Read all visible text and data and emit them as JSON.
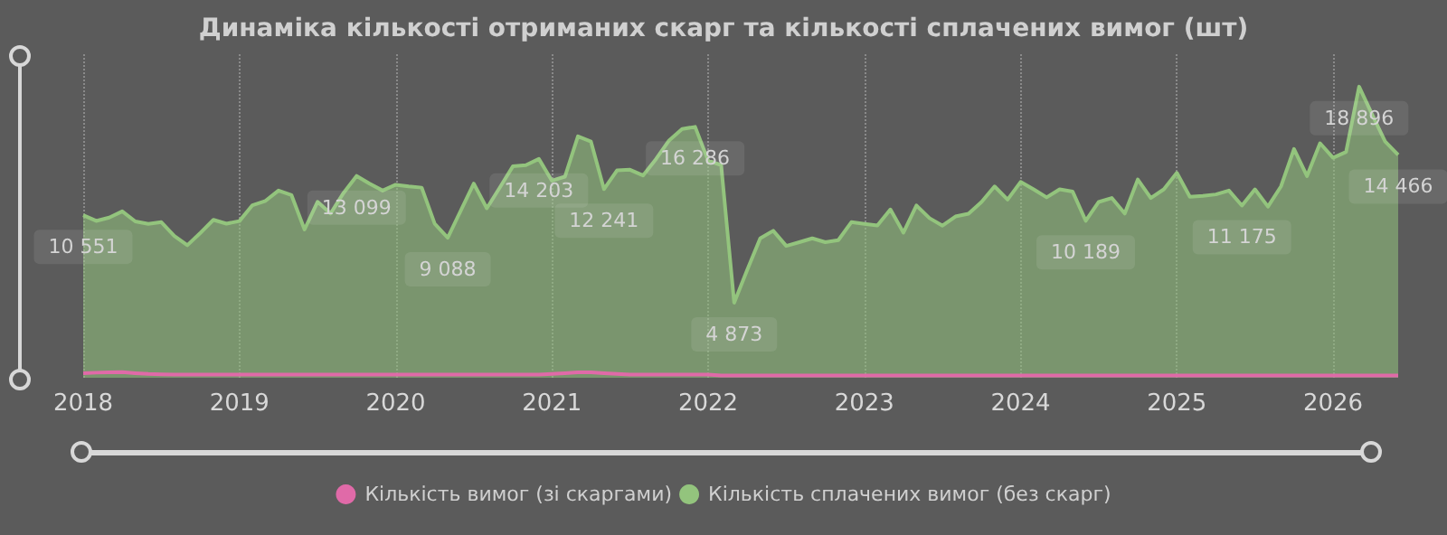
{
  "chart_data": {
    "type": "area",
    "title": "Динаміка кількості отриманих скарг та кількості сплачених вимог (шт)",
    "categories": [
      "2018",
      null,
      null,
      null,
      null,
      null,
      null,
      null,
      null,
      null,
      null,
      null,
      "2019",
      null,
      null,
      null,
      null,
      null,
      null,
      null,
      null,
      null,
      null,
      null,
      "2020",
      null,
      null,
      null,
      null,
      null,
      null,
      null,
      null,
      null,
      null,
      null,
      "2021",
      null,
      null,
      null,
      null,
      null,
      null,
      null,
      null,
      null,
      null,
      null,
      "2022",
      null,
      null,
      null,
      null,
      null,
      null,
      null,
      null,
      null,
      null,
      null,
      "2023",
      null,
      null,
      null,
      null,
      null,
      null,
      null,
      null,
      null,
      null,
      null,
      "2024",
      null,
      null,
      null,
      null,
      null,
      null,
      null,
      null,
      null,
      null,
      null,
      "2025",
      null,
      null,
      null,
      null,
      null,
      null,
      null,
      null,
      null,
      null,
      null,
      "2026",
      null,
      null,
      null,
      null,
      null
    ],
    "series": [
      {
        "name": "Кількість вимог (зі скаргами)",
        "type": "line",
        "color": "#e06aa8",
        "values": [
          300,
          330,
          350,
          360,
          300,
          250,
          220,
          200,
          200,
          200,
          200,
          200,
          200,
          200,
          200,
          200,
          200,
          200,
          200,
          200,
          200,
          200,
          200,
          200,
          200,
          200,
          200,
          200,
          200,
          200,
          200,
          200,
          200,
          200,
          200,
          200,
          250,
          300,
          350,
          350,
          300,
          250,
          200,
          200,
          200,
          200,
          200,
          200,
          200,
          150,
          150,
          150,
          150,
          150,
          150,
          150,
          150,
          150,
          150,
          150,
          150,
          150,
          150,
          150,
          150,
          150,
          150,
          150,
          150,
          150,
          150,
          150,
          150,
          150,
          150,
          150,
          150,
          150,
          150,
          150,
          150,
          150,
          150,
          150,
          150,
          150,
          150,
          150,
          150,
          150,
          150,
          150,
          150,
          150,
          150,
          150,
          150,
          150,
          150,
          150,
          150,
          150
        ]
      },
      {
        "name": "Кількість сплачених вимог (без скарг)",
        "color": "#93c47d",
        "values": [
          10551,
          10180,
          10400,
          10800,
          10150,
          9990,
          10100,
          9200,
          8600,
          9400,
          10250,
          10000,
          10170,
          11200,
          11480,
          12150,
          11850,
          9620,
          11420,
          10660,
          12000,
          13099,
          12600,
          12150,
          12530,
          12420,
          12340,
          9990,
          9088,
          10850,
          12600,
          11000,
          12350,
          13720,
          13800,
          14203,
          12790,
          13050,
          15670,
          15330,
          12241,
          13460,
          13500,
          13130,
          14200,
          15400,
          16150,
          16286,
          14100,
          13800,
          4873,
          7000,
          9050,
          9540,
          8560,
          8800,
          9050,
          8800,
          8930,
          10100,
          9990,
          9880,
          10920,
          9420,
          11180,
          10360,
          9870,
          10470,
          10650,
          11410,
          12420,
          11560,
          12710,
          12230,
          11710,
          12230,
          12080,
          10189,
          11410,
          11670,
          10660,
          12870,
          11670,
          12230,
          13300,
          11750,
          11800,
          11900,
          12150,
          11175,
          12230,
          11110,
          12420,
          14850,
          13090,
          15220,
          14280,
          14660,
          18896,
          17090,
          15330,
          14466
        ],
        "value_labels": [
          "10 551",
          null,
          null,
          null,
          null,
          null,
          null,
          null,
          null,
          null,
          null,
          null,
          null,
          null,
          null,
          null,
          null,
          null,
          null,
          null,
          null,
          "13 099",
          null,
          null,
          null,
          null,
          null,
          null,
          "9 088",
          null,
          null,
          null,
          null,
          null,
          null,
          "14 203",
          null,
          null,
          null,
          null,
          "12 241",
          null,
          null,
          null,
          null,
          null,
          null,
          "16 286",
          null,
          null,
          "4 873",
          null,
          null,
          null,
          null,
          null,
          null,
          null,
          null,
          null,
          null,
          null,
          null,
          null,
          null,
          null,
          null,
          null,
          null,
          null,
          null,
          null,
          null,
          null,
          null,
          null,
          null,
          "10 189",
          null,
          null,
          null,
          null,
          null,
          null,
          null,
          null,
          null,
          null,
          null,
          "11 175",
          null,
          null,
          null,
          null,
          null,
          null,
          null,
          null,
          "18 896",
          null,
          null,
          "14 466"
        ]
      }
    ],
    "grid": "x",
    "legend": "bottom",
    "marker": "none"
  }
}
